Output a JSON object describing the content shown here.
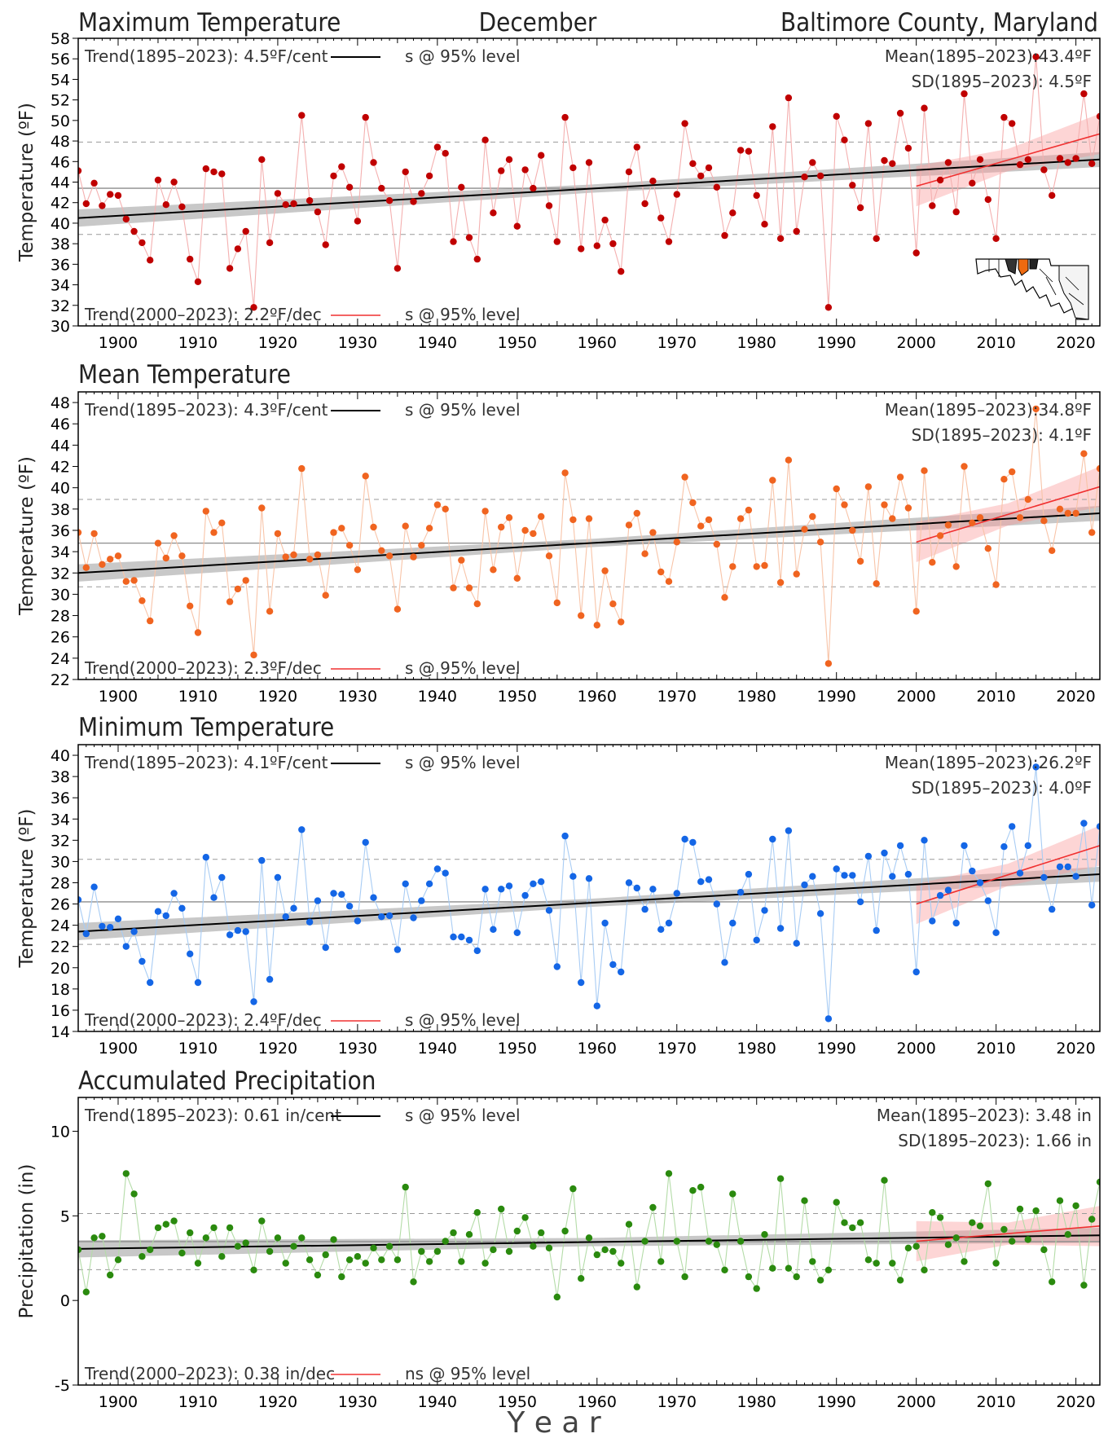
{
  "header": {
    "title": "Maximum Temperature",
    "month": "December",
    "location": "Baltimore County, Maryland"
  },
  "x_axis_label": "Y e a r",
  "chart_data": [
    {
      "type": "line",
      "title": "Maximum Temperature",
      "ylabel": "Temperature (ºF)",
      "xlim": [
        1895,
        2023
      ],
      "ylim": [
        30,
        58
      ],
      "yticks": [
        30,
        32,
        34,
        36,
        38,
        40,
        42,
        44,
        46,
        48,
        50,
        52,
        54,
        56,
        58
      ],
      "xticks": [
        1900,
        1910,
        1920,
        1930,
        1940,
        1950,
        1960,
        1970,
        1980,
        1990,
        2000,
        2010,
        2020
      ],
      "color": "#c00000",
      "line_color": "#f4b0b0",
      "trend_long": "Trend(1895–2023):   4.5ºF/cent",
      "sig_long": "s @ 95% level",
      "trend_recent": "Trend(2000–2023):   2.2ºF/dec",
      "sig_recent": "s @ 95% level",
      "mean_text": "Mean(1895–2023):43.4ºF",
      "sd_text": "SD(1895–2023):  4.5ºF",
      "mean": 43.4,
      "sd": 4.5,
      "trend_line_long": {
        "x": [
          1895,
          2023
        ],
        "y": [
          40.5,
          46.2
        ]
      },
      "trend_line_recent": {
        "x": [
          2000,
          2023
        ],
        "y": [
          43.6,
          48.7
        ]
      },
      "years_start": 1895,
      "values": [
        45.1,
        41.9,
        43.9,
        41.7,
        42.8,
        42.7,
        40.4,
        39.2,
        38.1,
        36.4,
        44.2,
        41.8,
        44.0,
        41.6,
        36.5,
        34.3,
        45.3,
        45.0,
        44.8,
        35.6,
        37.5,
        39.2,
        31.8,
        46.2,
        38.1,
        42.9,
        41.8,
        41.9,
        50.5,
        42.2,
        41.1,
        37.9,
        44.6,
        45.5,
        43.5,
        40.2,
        50.3,
        45.9,
        43.4,
        42.2,
        35.6,
        45.0,
        42.1,
        42.9,
        44.6,
        47.4,
        46.8,
        38.2,
        43.5,
        38.6,
        36.5,
        48.1,
        41.0,
        45.1,
        46.2,
        39.7,
        45.2,
        43.4,
        46.6,
        41.7,
        38.2,
        50.3,
        45.4,
        37.5,
        45.9,
        37.8,
        40.3,
        38.0,
        35.3,
        45.0,
        47.4,
        41.9,
        44.1,
        40.5,
        38.2,
        42.8,
        49.7,
        45.8,
        44.6,
        45.4,
        43.5,
        38.8,
        41.0,
        47.1,
        47.0,
        42.7,
        39.9,
        49.4,
        38.5,
        52.2,
        39.2,
        44.5,
        45.9,
        44.6,
        31.8,
        50.4,
        48.1,
        43.7,
        41.5,
        49.7,
        38.5,
        46.1,
        45.8,
        50.7,
        47.3,
        37.1,
        51.2,
        41.7,
        44.2,
        45.9,
        41.1,
        52.6,
        43.9,
        46.2,
        42.3,
        38.5,
        50.3,
        49.7,
        45.7,
        46.2,
        56.2,
        45.2,
        42.7,
        46.3,
        45.9,
        46.3,
        52.6,
        45.8,
        50.4
      ]
    },
    {
      "type": "line",
      "title": "Mean Temperature",
      "ylabel": "Temperature (ºF)",
      "xlim": [
        1895,
        2023
      ],
      "ylim": [
        22,
        49
      ],
      "yticks": [
        22,
        24,
        26,
        28,
        30,
        32,
        34,
        36,
        38,
        40,
        42,
        44,
        46,
        48
      ],
      "xticks": [
        1900,
        1910,
        1920,
        1930,
        1940,
        1950,
        1960,
        1970,
        1980,
        1990,
        2000,
        2010,
        2020
      ],
      "color": "#f06420",
      "line_color": "#f8c4a8",
      "trend_long": "Trend(1895–2023):   4.3ºF/cent",
      "sig_long": "s @ 95% level",
      "trend_recent": "Trend(2000–2023):   2.3ºF/dec",
      "sig_recent": "s @ 95% level",
      "mean_text": "Mean(1895–2023):34.8ºF",
      "sd_text": "SD(1895–2023):  4.1ºF",
      "mean": 34.8,
      "sd": 4.1,
      "trend_line_long": {
        "x": [
          1895,
          2023
        ],
        "y": [
          32.0,
          37.6
        ]
      },
      "trend_line_recent": {
        "x": [
          2000,
          2023
        ],
        "y": [
          34.9,
          40.1
        ]
      },
      "years_start": 1895,
      "values": [
        35.8,
        32.5,
        35.7,
        32.8,
        33.3,
        33.6,
        31.2,
        31.3,
        29.4,
        27.5,
        34.8,
        33.4,
        35.5,
        33.6,
        28.9,
        26.4,
        37.8,
        35.8,
        36.7,
        29.3,
        30.5,
        31.3,
        24.3,
        38.1,
        28.4,
        35.7,
        33.5,
        33.7,
        41.8,
        33.3,
        33.7,
        29.9,
        35.8,
        36.2,
        34.6,
        32.3,
        41.1,
        36.3,
        34.1,
        33.6,
        28.6,
        36.4,
        33.5,
        34.6,
        36.2,
        38.4,
        38.0,
        30.6,
        33.2,
        30.6,
        29.1,
        37.8,
        32.3,
        36.3,
        37.2,
        31.5,
        36.0,
        35.7,
        37.3,
        33.6,
        29.2,
        41.4,
        37.0,
        28.0,
        37.1,
        27.1,
        32.2,
        29.1,
        27.4,
        36.5,
        37.6,
        33.8,
        35.8,
        32.1,
        31.2,
        34.9,
        41.0,
        38.6,
        36.4,
        37.0,
        34.7,
        29.7,
        32.6,
        37.1,
        37.9,
        32.6,
        32.7,
        40.7,
        31.1,
        42.6,
        31.9,
        36.1,
        37.3,
        34.9,
        23.5,
        39.9,
        38.4,
        36.0,
        33.1,
        40.1,
        31.0,
        38.4,
        37.1,
        41.0,
        38.1,
        28.4,
        41.6,
        33.0,
        35.5,
        36.5,
        32.6,
        42.0,
        36.7,
        37.2,
        34.3,
        30.9,
        40.8,
        41.5,
        37.2,
        38.9,
        47.4,
        36.9,
        34.1,
        38.0,
        37.6,
        37.6,
        43.2,
        35.8,
        41.8
      ]
    },
    {
      "type": "line",
      "title": "Minimum Temperature",
      "ylabel": "Temperature (ºF)",
      "xlim": [
        1895,
        2023
      ],
      "ylim": [
        14,
        41
      ],
      "yticks": [
        14,
        16,
        18,
        20,
        22,
        24,
        26,
        28,
        30,
        32,
        34,
        36,
        38,
        40
      ],
      "xticks": [
        1900,
        1910,
        1920,
        1930,
        1940,
        1950,
        1960,
        1970,
        1980,
        1990,
        2000,
        2010,
        2020
      ],
      "color": "#1466e6",
      "line_color": "#a8ccf4",
      "trend_long": "Trend(1895–2023):   4.1ºF/cent",
      "sig_long": "s @ 95% level",
      "trend_recent": "Trend(2000–2023):   2.4ºF/dec",
      "sig_recent": "s @ 95% level",
      "mean_text": "Mean(1895–2023):26.2ºF",
      "sd_text": "SD(1895–2023):  4.0ºF",
      "mean": 26.2,
      "sd": 4.0,
      "trend_line_long": {
        "x": [
          1895,
          2023
        ],
        "y": [
          23.4,
          28.8
        ]
      },
      "trend_line_recent": {
        "x": [
          2000,
          2023
        ],
        "y": [
          26.0,
          31.5
        ]
      },
      "years_start": 1895,
      "values": [
        26.4,
        23.2,
        27.6,
        23.9,
        23.8,
        24.6,
        22.0,
        23.4,
        20.6,
        18.6,
        25.3,
        24.9,
        27.0,
        25.6,
        21.3,
        18.6,
        30.4,
        26.6,
        28.5,
        23.1,
        23.5,
        23.4,
        16.8,
        30.1,
        18.9,
        28.5,
        24.8,
        25.6,
        33.0,
        24.3,
        26.3,
        21.9,
        27.0,
        26.9,
        25.8,
        24.4,
        31.8,
        26.6,
        24.8,
        24.9,
        21.7,
        27.9,
        24.7,
        26.3,
        27.9,
        29.3,
        28.9,
        22.9,
        22.9,
        22.6,
        21.6,
        27.4,
        23.6,
        27.4,
        27.7,
        23.3,
        26.8,
        27.9,
        28.1,
        25.4,
        20.1,
        32.4,
        28.6,
        18.6,
        28.4,
        16.4,
        24.2,
        20.3,
        19.6,
        28.0,
        27.5,
        25.5,
        27.4,
        23.6,
        24.2,
        27.0,
        32.1,
        31.8,
        28.1,
        28.3,
        26.0,
        20.5,
        24.2,
        27.1,
        28.8,
        22.6,
        25.4,
        32.1,
        23.7,
        32.9,
        22.3,
        27.8,
        28.6,
        25.1,
        15.2,
        29.3,
        28.7,
        28.7,
        26.2,
        30.5,
        23.5,
        30.8,
        28.6,
        31.5,
        28.8,
        19.6,
        32.0,
        24.4,
        26.8,
        27.3,
        24.2,
        31.5,
        29.1,
        28.0,
        26.3,
        23.3,
        31.4,
        33.3,
        28.9,
        31.5,
        38.9,
        28.5,
        25.5,
        29.5,
        29.5,
        28.6,
        33.6,
        25.9,
        33.3
      ]
    },
    {
      "type": "line",
      "title": "Accumulated Precipitation",
      "ylabel": "Precipitation (in)",
      "xlim": [
        1895,
        2023
      ],
      "ylim": [
        -5,
        12
      ],
      "yticks": [
        -5,
        0,
        5,
        10
      ],
      "xticks": [
        1900,
        1910,
        1920,
        1930,
        1940,
        1950,
        1960,
        1970,
        1980,
        1990,
        2000,
        2010,
        2020
      ],
      "color": "#2a8a0e",
      "line_color": "#b4dca8",
      "trend_long": "Trend(1895–2023):   0.61 in/cent",
      "sig_long": "s @ 95% level",
      "trend_recent": "Trend(2000–2023):   0.38 in/dec",
      "sig_recent": "ns @ 95% level",
      "mean_text": "Mean(1895–2023): 3.48 in",
      "sd_text": "SD(1895–2023): 1.66 in",
      "mean": 3.48,
      "sd": 1.66,
      "trend_line_long": {
        "x": [
          1895,
          2023
        ],
        "y": [
          3.05,
          3.85
        ]
      },
      "trend_line_recent": {
        "x": [
          2000,
          2023
        ],
        "y": [
          3.5,
          4.4
        ]
      },
      "years_start": 1895,
      "values": [
        3.0,
        0.5,
        3.7,
        3.8,
        1.5,
        2.4,
        7.5,
        6.3,
        2.6,
        3.0,
        4.3,
        4.5,
        4.7,
        2.8,
        4.0,
        2.2,
        3.7,
        4.3,
        2.6,
        4.3,
        3.2,
        3.4,
        1.8,
        4.7,
        2.9,
        3.7,
        2.2,
        3.2,
        3.7,
        2.4,
        1.5,
        2.7,
        3.6,
        1.4,
        2.4,
        2.6,
        2.2,
        3.1,
        2.4,
        3.2,
        2.4,
        6.7,
        1.1,
        2.9,
        2.3,
        2.9,
        3.5,
        4.0,
        2.3,
        3.9,
        5.2,
        2.2,
        3.0,
        5.4,
        2.9,
        4.1,
        4.9,
        3.2,
        4.0,
        3.1,
        0.2,
        4.1,
        6.6,
        1.3,
        3.7,
        2.7,
        3.0,
        2.9,
        2.2,
        4.5,
        0.8,
        3.5,
        5.5,
        2.3,
        7.5,
        3.5,
        1.4,
        6.5,
        6.7,
        3.5,
        3.3,
        1.8,
        6.3,
        3.5,
        1.4,
        0.7,
        3.9,
        1.9,
        7.2,
        1.9,
        1.4,
        5.9,
        2.3,
        1.2,
        1.8,
        5.8,
        4.6,
        4.3,
        4.6,
        2.4,
        2.2,
        7.1,
        2.2,
        1.2,
        3.1,
        3.2,
        1.8,
        5.2,
        4.9,
        3.3,
        3.7,
        2.3,
        4.6,
        4.4,
        6.9,
        2.2,
        4.2,
        3.5,
        5.4,
        3.6,
        5.3,
        3.0,
        1.1,
        5.9,
        3.9,
        5.6,
        0.9,
        4.8,
        7.0
      ]
    }
  ]
}
